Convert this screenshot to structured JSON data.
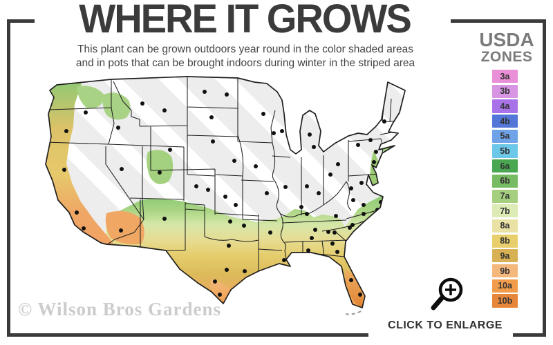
{
  "header": {
    "title": "WHERE IT GROWS",
    "subtitle_line1": "This plant can be grown outdoors year round in the color shaded areas",
    "subtitle_line2": "and in pots that can be brought indoors during winter in the striped area"
  },
  "legend": {
    "title_line1": "USDA",
    "title_line2": "ZONES",
    "zones": [
      {
        "label": "3a",
        "color": "#e98fd7"
      },
      {
        "label": "3b",
        "color": "#d795e3"
      },
      {
        "label": "4a",
        "color": "#a873e8"
      },
      {
        "label": "4b",
        "color": "#5377d9"
      },
      {
        "label": "5a",
        "color": "#6fa3e8"
      },
      {
        "label": "5b",
        "color": "#6cc8e8"
      },
      {
        "label": "6a",
        "color": "#4aa751"
      },
      {
        "label": "6b",
        "color": "#77bb63"
      },
      {
        "label": "7a",
        "color": "#a5cf7e"
      },
      {
        "label": "7b",
        "color": "#dcecb4"
      },
      {
        "label": "8a",
        "color": "#e9e2a4"
      },
      {
        "label": "8b",
        "color": "#e9cf6b"
      },
      {
        "label": "9a",
        "color": "#d9b155"
      },
      {
        "label": "9b",
        "color": "#f4b87c"
      },
      {
        "label": "10a",
        "color": "#f19c4a"
      },
      {
        "label": "10b",
        "color": "#e7873b"
      }
    ]
  },
  "map": {
    "striped_area_fill": "#ededed",
    "stripe_color": "#ffffff",
    "border_color": "#1e1e1e",
    "city_dot_color": "#111111"
  },
  "footer": {
    "watermark": "© Wilson Bros Gardens",
    "enlarge_label": "CLICK TO ENLARGE"
  },
  "colors": {
    "frame": "#3a3a3a",
    "title_text": "#3b3b3b",
    "legend_title_text": "#7b7b7b"
  }
}
